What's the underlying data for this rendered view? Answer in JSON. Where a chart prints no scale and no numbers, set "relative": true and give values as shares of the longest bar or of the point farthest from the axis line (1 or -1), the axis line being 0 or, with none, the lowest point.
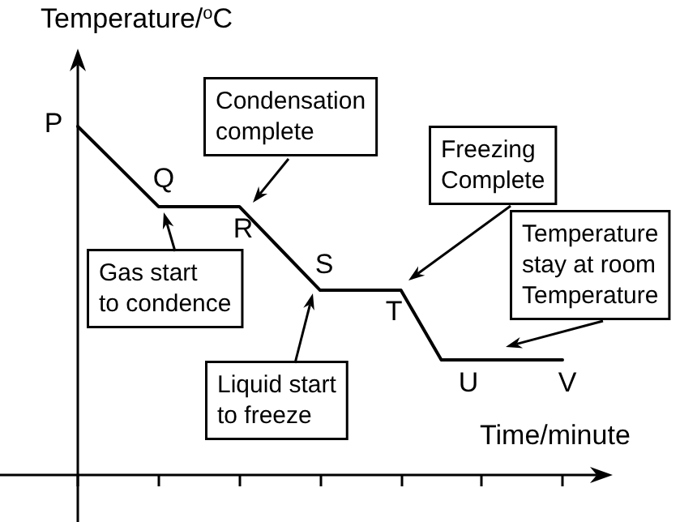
{
  "chart_data": {
    "type": "line",
    "relative": true,
    "xlabel": "Time/minute",
    "ylabel": "Temperature/$^{o}$C",
    "categories": [
      null,
      null,
      null,
      null,
      null,
      null,
      null,
      null,
      null,
      null,
      null,
      null,
      null
    ],
    "values": [
      1,
      0.885,
      0.77,
      0.77,
      0.77,
      0.65,
      0.53,
      0.53,
      0.53,
      0.33,
      0.33,
      0.33,
      0.33
    ],
    "color": "#000000",
    "marker": "none",
    "line_style": "solid",
    "grid": false,
    "annotations": [
      "P",
      "Q",
      "R",
      "S",
      "T",
      "U",
      "V",
      "Condensation complete",
      "Gas start to condence",
      "Liquid start to freeze",
      "Freezing Complete",
      "Temperature stay at room Temperature"
    ]
  }
}
